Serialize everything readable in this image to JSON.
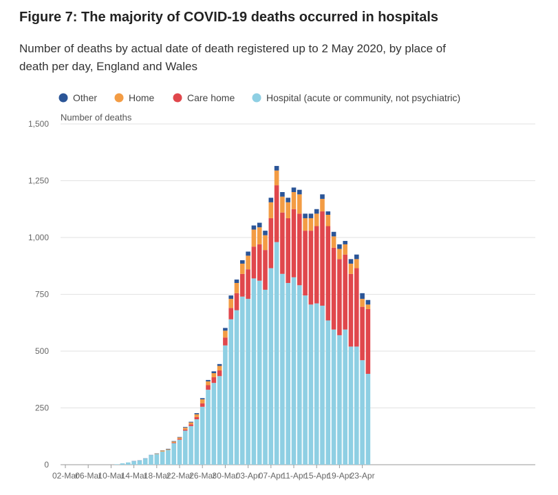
{
  "title": "Figure 7: The majority of COVID-19 deaths occurred in hospitals",
  "subtitle": "Number of deaths by actual date of death registered up to 2 May 2020, by place of death per day, England and Wales",
  "chart_data": {
    "type": "bar",
    "stacked": true,
    "ylabel": "Number of deaths",
    "ylim": [
      0,
      1500
    ],
    "yticks": [
      0,
      250,
      500,
      750,
      1000,
      1250,
      1500
    ],
    "ytick_labels": [
      "0",
      "250",
      "500",
      "750",
      "1,000",
      "1,250",
      "1,500"
    ],
    "xtick_labels": [
      "02-Mar",
      "06-Mar",
      "10-Mar",
      "14-Mar",
      "18-Mar",
      "22-Mar",
      "26-Mar",
      "30-Mar",
      "03-Apr",
      "07-Apr",
      "11-Apr",
      "15-Apr",
      "19-Apr",
      "23-Apr"
    ],
    "legend_position": "top-left",
    "grid": true,
    "categories": [
      "02-Mar",
      "03-Mar",
      "04-Mar",
      "05-Mar",
      "06-Mar",
      "07-Mar",
      "08-Mar",
      "09-Mar",
      "10-Mar",
      "11-Mar",
      "12-Mar",
      "13-Mar",
      "14-Mar",
      "15-Mar",
      "16-Mar",
      "17-Mar",
      "18-Mar",
      "19-Mar",
      "20-Mar",
      "21-Mar",
      "22-Mar",
      "23-Mar",
      "24-Mar",
      "25-Mar",
      "26-Mar",
      "27-Mar",
      "28-Mar",
      "29-Mar",
      "30-Mar",
      "31-Mar",
      "01-Apr",
      "02-Apr",
      "03-Apr",
      "04-Apr",
      "05-Apr",
      "06-Apr",
      "07-Apr",
      "08-Apr",
      "09-Apr",
      "10-Apr",
      "11-Apr",
      "12-Apr",
      "13-Apr",
      "14-Apr",
      "15-Apr",
      "16-Apr",
      "17-Apr",
      "18-Apr",
      "19-Apr",
      "20-Apr",
      "21-Apr",
      "22-Apr",
      "23-Apr",
      "24-Apr",
      "25-Apr"
    ],
    "series": [
      {
        "name": "Hospital (acute or community, not psychiatric)",
        "color": "#8ecfe3",
        "values": [
          0,
          0,
          0,
          0,
          0,
          0,
          0,
          0,
          0,
          2,
          6,
          10,
          15,
          18,
          27,
          42,
          47,
          58,
          65,
          95,
          110,
          150,
          170,
          200,
          255,
          330,
          360,
          390,
          525,
          640,
          680,
          740,
          730,
          820,
          810,
          770,
          865,
          980,
          840,
          800,
          825,
          790,
          745,
          705,
          710,
          700,
          635,
          595,
          570,
          595,
          520,
          520,
          460,
          400,
          0
        ]
      },
      {
        "name": "Care home",
        "color": "#e0474c",
        "values": [
          0,
          0,
          0,
          0,
          0,
          0,
          0,
          0,
          0,
          0,
          0,
          0,
          0,
          0,
          0,
          0,
          0,
          0,
          0,
          2,
          4,
          5,
          8,
          10,
          15,
          20,
          25,
          25,
          35,
          50,
          75,
          100,
          130,
          140,
          160,
          175,
          220,
          250,
          270,
          285,
          300,
          315,
          285,
          325,
          340,
          415,
          415,
          360,
          335,
          330,
          320,
          345,
          235,
          285,
          0
        ]
      },
      {
        "name": "Home",
        "color": "#f39c44",
        "values": [
          0,
          0,
          0,
          0,
          0,
          0,
          0,
          0,
          0,
          0,
          0,
          0,
          0,
          0,
          0,
          0,
          2,
          4,
          3,
          5,
          6,
          8,
          8,
          12,
          18,
          17,
          18,
          20,
          30,
          40,
          45,
          45,
          60,
          75,
          75,
          65,
          70,
          65,
          70,
          70,
          75,
          85,
          55,
          55,
          55,
          55,
          50,
          50,
          45,
          45,
          45,
          40,
          35,
          20,
          0
        ]
      },
      {
        "name": "Other",
        "color": "#2b5597",
        "values": [
          0,
          0,
          0,
          0,
          0,
          0,
          0,
          0,
          0,
          0,
          0,
          0,
          1,
          1,
          1,
          1,
          1,
          1,
          2,
          2,
          2,
          3,
          3,
          5,
          5,
          6,
          8,
          8,
          12,
          15,
          15,
          15,
          18,
          18,
          20,
          20,
          20,
          20,
          20,
          20,
          20,
          20,
          20,
          20,
          20,
          20,
          15,
          20,
          20,
          15,
          20,
          20,
          25,
          20,
          0
        ]
      }
    ]
  }
}
